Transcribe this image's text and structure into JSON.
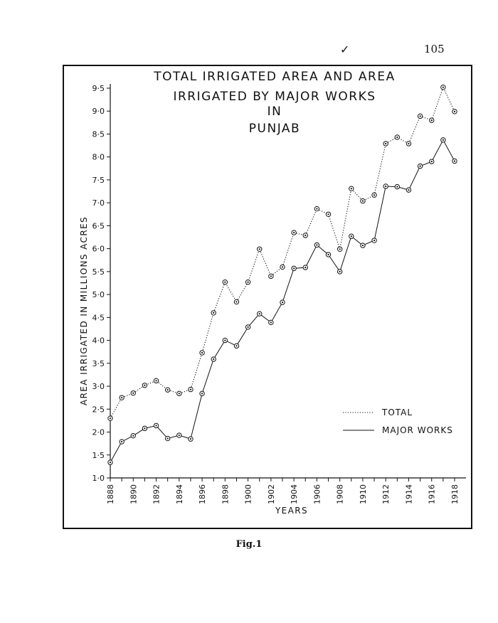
{
  "page_number": "105",
  "check_mark": "✓",
  "caption": "Fig.1",
  "chart_data": {
    "type": "line",
    "title": [
      "TOTAL IRRIGATED AREA AND AREA",
      "IRRIGATED BY MAJOR WORKS",
      "IN",
      "PUNJAB"
    ],
    "xlabel": "YEARS",
    "ylabel": "AREA IRRIGATED IN MILLIONS ACRES",
    "ylim": [
      1.0,
      9.5
    ],
    "y_ticks": [
      "1·0",
      "1·5",
      "2·0",
      "2·5",
      "3·0",
      "3·5",
      "4·0",
      "4·5",
      "5·0",
      "5·5",
      "6·0",
      "6·5",
      "7·0",
      "7·5",
      "8·0",
      "8·5",
      "9·0",
      "9·5"
    ],
    "x_ticks": [
      "1888",
      "1890",
      "1892",
      "1894",
      "1896",
      "1898",
      "1900",
      "1902",
      "1904",
      "1906",
      "1908",
      "1910",
      "1912",
      "1914",
      "1916",
      "1918"
    ],
    "x": [
      1888,
      1889,
      1890,
      1891,
      1892,
      1893,
      1894,
      1895,
      1896,
      1897,
      1898,
      1899,
      1900,
      1901,
      1902,
      1903,
      1904,
      1905,
      1906,
      1907,
      1908,
      1909,
      1910,
      1911,
      1912,
      1913,
      1914,
      1915,
      1916,
      1917,
      1918
    ],
    "series": [
      {
        "name": "TOTAL",
        "style": "dotted",
        "values": [
          2.3,
          2.75,
          2.85,
          3.02,
          3.12,
          2.92,
          2.84,
          2.93,
          3.73,
          4.6,
          5.27,
          4.84,
          5.27,
          5.99,
          5.4,
          5.6,
          6.35,
          6.29,
          6.87,
          6.75,
          5.99,
          7.31,
          7.04,
          7.17,
          8.29,
          8.43,
          8.29,
          8.89,
          8.8,
          9.52,
          8.99
        ]
      },
      {
        "name": "MAJOR WORKS",
        "style": "solid",
        "values": [
          1.34,
          1.79,
          1.92,
          2.08,
          2.14,
          1.86,
          1.93,
          1.85,
          2.84,
          3.59,
          4.0,
          3.88,
          4.29,
          4.58,
          4.39,
          4.83,
          5.57,
          5.59,
          6.08,
          5.87,
          5.5,
          6.27,
          6.07,
          6.18,
          7.36,
          7.35,
          7.28,
          7.8,
          7.9,
          8.37,
          7.91
        ]
      }
    ],
    "legend_position": "bottom-right",
    "marker": "open circle"
  }
}
